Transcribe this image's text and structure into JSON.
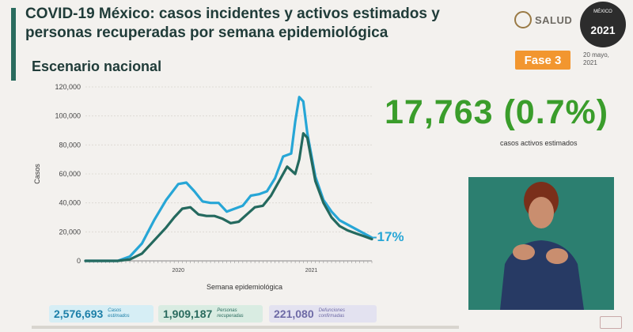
{
  "header": {
    "title": "COVID-19 México: casos incidentes y activos estimados y personas recuperadas por semana epidemiológica",
    "subtitle": "Escenario nacional"
  },
  "logo": {
    "text": "SALUD"
  },
  "seal": {
    "top": "MÉXICO",
    "year": "2021"
  },
  "phase": {
    "label": "Fase 3"
  },
  "date": {
    "line1": "20 mayo,",
    "line2": "2021"
  },
  "headline": {
    "value": "17,763 (0.7%)",
    "label": "casos activos estimados"
  },
  "stats": [
    {
      "value": "2,576,693",
      "label_line1": "Casos",
      "label_line2": "estimados"
    },
    {
      "value": "1,909,187",
      "label_line1": "Personas",
      "label_line2": "recuperadas"
    },
    {
      "value": "221,080",
      "label_line1": "Defunciones",
      "label_line2": "confirmadas"
    }
  ],
  "colors": {
    "estimated": "#27a6d6",
    "active": "#24695e",
    "headline": "#3a9d2b",
    "phase": "#f2962f"
  },
  "chart_data": {
    "type": "line",
    "xlabel": "Semana epidemiológica",
    "ylabel": "Casos",
    "ylim": [
      0,
      120000
    ],
    "yticks": [
      0,
      20000,
      40000,
      60000,
      80000,
      100000,
      120000
    ],
    "ytick_labels": [
      "0",
      "20,000",
      "40,000",
      "60,000",
      "80,000",
      "100,000",
      "120,000"
    ],
    "xlim": [
      0,
      71
    ],
    "xticks": [
      {
        "x": 23,
        "label": "2020"
      },
      {
        "x": 56,
        "label": "2021"
      }
    ],
    "annotation": {
      "text": "-17%",
      "x": 70,
      "y": 17000
    },
    "series": [
      {
        "key": "estimated",
        "values": [
          [
            0,
            0
          ],
          [
            4,
            0
          ],
          [
            8,
            0
          ],
          [
            11,
            3000
          ],
          [
            14,
            12000
          ],
          [
            17,
            28000
          ],
          [
            20,
            42000
          ],
          [
            23,
            53000
          ],
          [
            25,
            54000
          ],
          [
            27,
            48000
          ],
          [
            29,
            41000
          ],
          [
            31,
            40000
          ],
          [
            33,
            40000
          ],
          [
            35,
            34000
          ],
          [
            37,
            36000
          ],
          [
            39,
            38000
          ],
          [
            41,
            45000
          ],
          [
            43,
            46000
          ],
          [
            45,
            48000
          ],
          [
            47,
            57000
          ],
          [
            49,
            72000
          ],
          [
            51,
            74000
          ],
          [
            52,
            96000
          ],
          [
            53,
            113000
          ],
          [
            54,
            110000
          ],
          [
            55,
            88000
          ],
          [
            57,
            58000
          ],
          [
            59,
            42000
          ],
          [
            61,
            34000
          ],
          [
            63,
            28000
          ],
          [
            65,
            25000
          ],
          [
            67,
            22000
          ],
          [
            69,
            19000
          ],
          [
            71,
            16000
          ]
        ]
      },
      {
        "key": "active",
        "values": [
          [
            0,
            0
          ],
          [
            4,
            0
          ],
          [
            8,
            0
          ],
          [
            11,
            1000
          ],
          [
            14,
            5000
          ],
          [
            17,
            14000
          ],
          [
            20,
            23000
          ],
          [
            22,
            30000
          ],
          [
            24,
            36000
          ],
          [
            26,
            37000
          ],
          [
            28,
            32000
          ],
          [
            30,
            31000
          ],
          [
            32,
            31000
          ],
          [
            34,
            29000
          ],
          [
            36,
            26000
          ],
          [
            38,
            27000
          ],
          [
            40,
            32000
          ],
          [
            42,
            37000
          ],
          [
            44,
            38000
          ],
          [
            46,
            45000
          ],
          [
            48,
            55000
          ],
          [
            50,
            65000
          ],
          [
            52,
            60000
          ],
          [
            53,
            70000
          ],
          [
            54,
            88000
          ],
          [
            55,
            85000
          ],
          [
            56,
            70000
          ],
          [
            57,
            55000
          ],
          [
            59,
            40000
          ],
          [
            61,
            30000
          ],
          [
            63,
            24000
          ],
          [
            65,
            21000
          ],
          [
            67,
            19000
          ],
          [
            69,
            17000
          ],
          [
            71,
            15000
          ]
        ]
      }
    ]
  }
}
